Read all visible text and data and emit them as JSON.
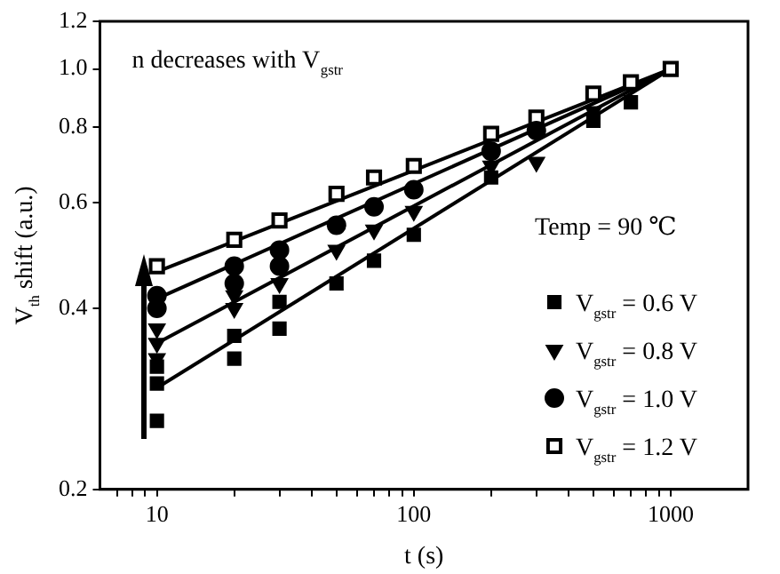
{
  "chart_data": {
    "type": "scatter",
    "xlabel": "t (s)",
    "ylabel": "V$_{th}$ shift (a.u.)",
    "log": "xy",
    "xlim": [
      6,
      2000
    ],
    "ylim": [
      0.2,
      1.2
    ],
    "xticks": [
      {
        "value": 7,
        "label": null
      },
      {
        "value": 8,
        "label": null
      },
      {
        "value": 9,
        "label": null
      },
      10,
      {
        "value": 20,
        "label": null
      },
      {
        "value": 30,
        "label": null
      },
      {
        "value": 40,
        "label": null
      },
      {
        "value": 50,
        "label": null
      },
      {
        "value": 60,
        "label": null
      },
      {
        "value": 70,
        "label": null
      },
      {
        "value": 80,
        "label": null
      },
      {
        "value": 90,
        "label": null
      },
      100,
      {
        "value": 200,
        "label": null
      },
      {
        "value": 300,
        "label": null
      },
      {
        "value": 400,
        "label": null
      },
      {
        "value": 500,
        "label": null
      },
      {
        "value": 600,
        "label": null
      },
      {
        "value": 700,
        "label": null
      },
      {
        "value": 800,
        "label": null
      },
      {
        "value": 900,
        "label": null
      },
      1000
    ],
    "yticks": [
      0.2,
      0.4,
      0.6,
      0.8,
      {
        "value": 1,
        "label": "1.0"
      },
      1.2
    ],
    "grid": false,
    "legend": "right",
    "annotations": [
      "n decreases with V$_{gstr}$",
      "Temp = 90 ℃"
    ],
    "series": [
      {
        "name": "V$_{gstr}$ = 0.6 V",
        "color": "#000000",
        "marker": "square",
        "x": [
          10,
          10,
          10,
          20,
          20,
          30,
          30,
          50,
          70,
          100,
          200,
          500,
          700
        ],
        "values": [
          0.26,
          0.3,
          0.32,
          0.33,
          0.36,
          0.37,
          0.41,
          0.44,
          0.48,
          0.53,
          0.66,
          0.82,
          0.88
        ]
      },
      {
        "name": "V$_{gstr}$ = 0.8 V",
        "color": "#000000",
        "marker": "triangle",
        "x": [
          10,
          10,
          10,
          20,
          20,
          30,
          50,
          70,
          100,
          200,
          300,
          500
        ],
        "values": [
          0.33,
          0.35,
          0.37,
          0.4,
          0.42,
          0.44,
          0.5,
          0.54,
          0.58,
          0.69,
          0.7,
          0.85
        ]
      },
      {
        "name": "V$_{gstr}$ = 1.0 V",
        "color": "#000000",
        "marker": "circle",
        "x": [
          10,
          10,
          20,
          20,
          30,
          30,
          50,
          70,
          100,
          200,
          300
        ],
        "values": [
          0.4,
          0.42,
          0.44,
          0.47,
          0.47,
          0.5,
          0.55,
          0.59,
          0.63,
          0.73,
          0.79
        ]
      },
      {
        "name": "V$_{gstr}$ = 1.2 V",
        "color": "#000000",
        "marker": "square",
        "x": [
          10,
          20,
          30,
          50,
          70,
          100,
          200,
          300,
          500,
          700,
          1000
        ],
        "values": [
          0.47,
          0.52,
          0.56,
          0.62,
          0.66,
          0.69,
          0.78,
          0.83,
          0.91,
          0.95,
          1.0
        ]
      },
      {
        "type": "line",
        "color": "#000000",
        "x": [
          10,
          1000
        ],
        "values": [
          0.295,
          1.0
        ]
      },
      {
        "type": "line",
        "color": "#000000",
        "x": [
          10,
          1000
        ],
        "values": [
          0.35,
          1.0
        ]
      },
      {
        "type": "line",
        "color": "#000000",
        "x": [
          10,
          1000
        ],
        "values": [
          0.415,
          1.0
        ]
      },
      {
        "type": "line",
        "color": "#000000",
        "x": [
          10,
          1000
        ],
        "values": [
          0.46,
          1.0
        ]
      }
    ]
  }
}
